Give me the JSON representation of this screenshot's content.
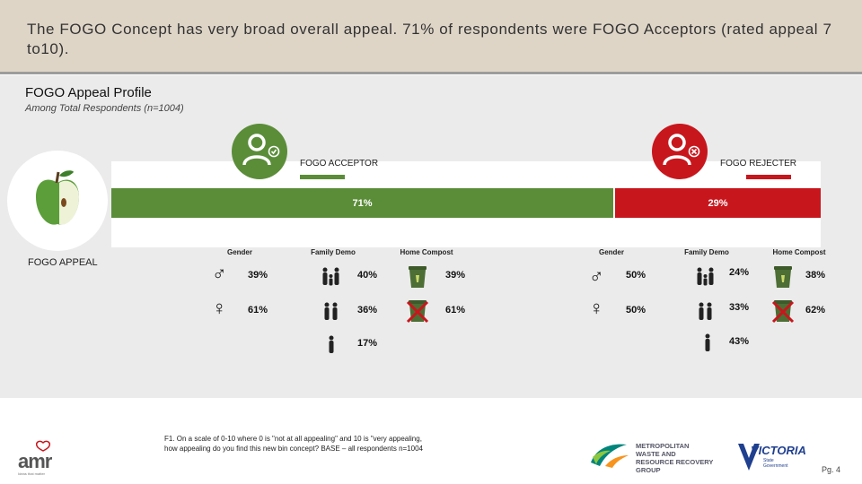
{
  "header": {
    "title": "The FOGO Concept has very broad overall appeal. 71% of respondents were FOGO Acceptors (rated appeal 7 to10)."
  },
  "profile": {
    "title": "FOGO Appeal Profile",
    "subtitle": "Among Total Respondents (n=1004)",
    "appeal_label": "FOGO APPEAL"
  },
  "acceptor": {
    "label": "FOGO ACCEPTOR",
    "share": "71%",
    "share_value": 71,
    "color": "#5b8d39",
    "headings": {
      "gender": "Gender",
      "family": "Family Demo",
      "compost": "Home Compost"
    },
    "gender": {
      "male": "39%",
      "female": "61%"
    },
    "family": {
      "with_kids": "40%",
      "couple": "36%",
      "single": "17%"
    },
    "compost": {
      "yes": "39%",
      "no": "61%"
    }
  },
  "rejecter": {
    "label": "FOGO REJECTER",
    "share": "29%",
    "share_value": 29,
    "color": "#c8161d",
    "headings": {
      "gender": "Gender",
      "family": "Family Demo",
      "compost": "Home Compost"
    },
    "gender": {
      "male": "50%",
      "female": "50%"
    },
    "family": {
      "with_kids": "24%",
      "couple": "33%",
      "single": "43%"
    },
    "compost": {
      "yes": "38%",
      "no": "62%"
    }
  },
  "footer": {
    "footnote": "F1. On a scale of 0-10 where 0 is \"not at all appealing\" and 10 is \"very appealing, how appealing do you find this new bin concept? BASE – all respondents n=1004",
    "page": "Pg. 4",
    "logos": {
      "amr": "amr",
      "amr_tagline": "Ideas that matter",
      "metro": [
        "METROPOLITAN",
        "WASTE AND",
        "RESOURCE RECOVERY",
        "GROUP"
      ],
      "victoria": "VICTORIA",
      "victoria_sub": [
        "State",
        "Government"
      ]
    }
  }
}
